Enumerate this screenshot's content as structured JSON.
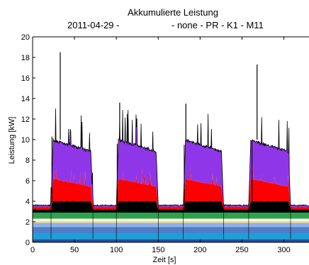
{
  "chart_data": {
    "type": "area",
    "title": "Akkumulierte Leistung",
    "subtitle_left": "2011-04-29 -",
    "subtitle_right": "- none - PR - K1 - M11",
    "xlabel": "Zeit [s]",
    "ylabel": "Leistung [kW]",
    "xlim": [
      0,
      330
    ],
    "ylim": [
      0,
      20
    ],
    "xticks": [
      0,
      50,
      100,
      150,
      200,
      250,
      300
    ],
    "yticks": [
      0,
      2,
      4,
      6,
      8,
      10,
      12,
      14,
      16,
      18,
      20
    ],
    "grid": false,
    "stack_colors": [
      "#1f4f9f",
      "#1e9fd6",
      "#4d7ec9",
      "#8fb1e8",
      "#f5e08c",
      "#ffffff",
      "#2ca24a",
      "#000000",
      "#ff0000",
      "#8f37e8"
    ],
    "baseline_tops": [
      0.3,
      0.9,
      1.5,
      1.9,
      2.1,
      2.3,
      2.9,
      3.2,
      3.45,
      3.6
    ],
    "idle_tops": [
      0.3,
      0.9,
      1.5,
      1.9,
      2.1,
      2.3,
      2.9,
      3.2,
      3.45,
      3.6
    ],
    "active_tops": [
      0.3,
      0.9,
      1.5,
      1.9,
      2.1,
      2.3,
      2.9,
      4.0,
      6.2,
      10.0
    ],
    "cycles": [
      {
        "start": 22,
        "end": 72,
        "spike_x": 33,
        "spike_y": 18.5,
        "pre_spike_x": 23,
        "pre_spike_y": 10.3
      },
      {
        "start": 100,
        "end": 150,
        "spike_x": 104,
        "spike_y": 13.6,
        "pre_spike_x": 101,
        "pre_spike_y": 9.6
      },
      {
        "start": 180,
        "end": 228,
        "spike_x": 183,
        "spike_y": 13.5,
        "pre_spike_x": 181,
        "pre_spike_y": 9.5
      },
      {
        "start": 258,
        "end": 308,
        "spike_x": 268,
        "spike_y": 17.3,
        "pre_spike_x": 262,
        "pre_spike_y": 9.8
      }
    ]
  }
}
